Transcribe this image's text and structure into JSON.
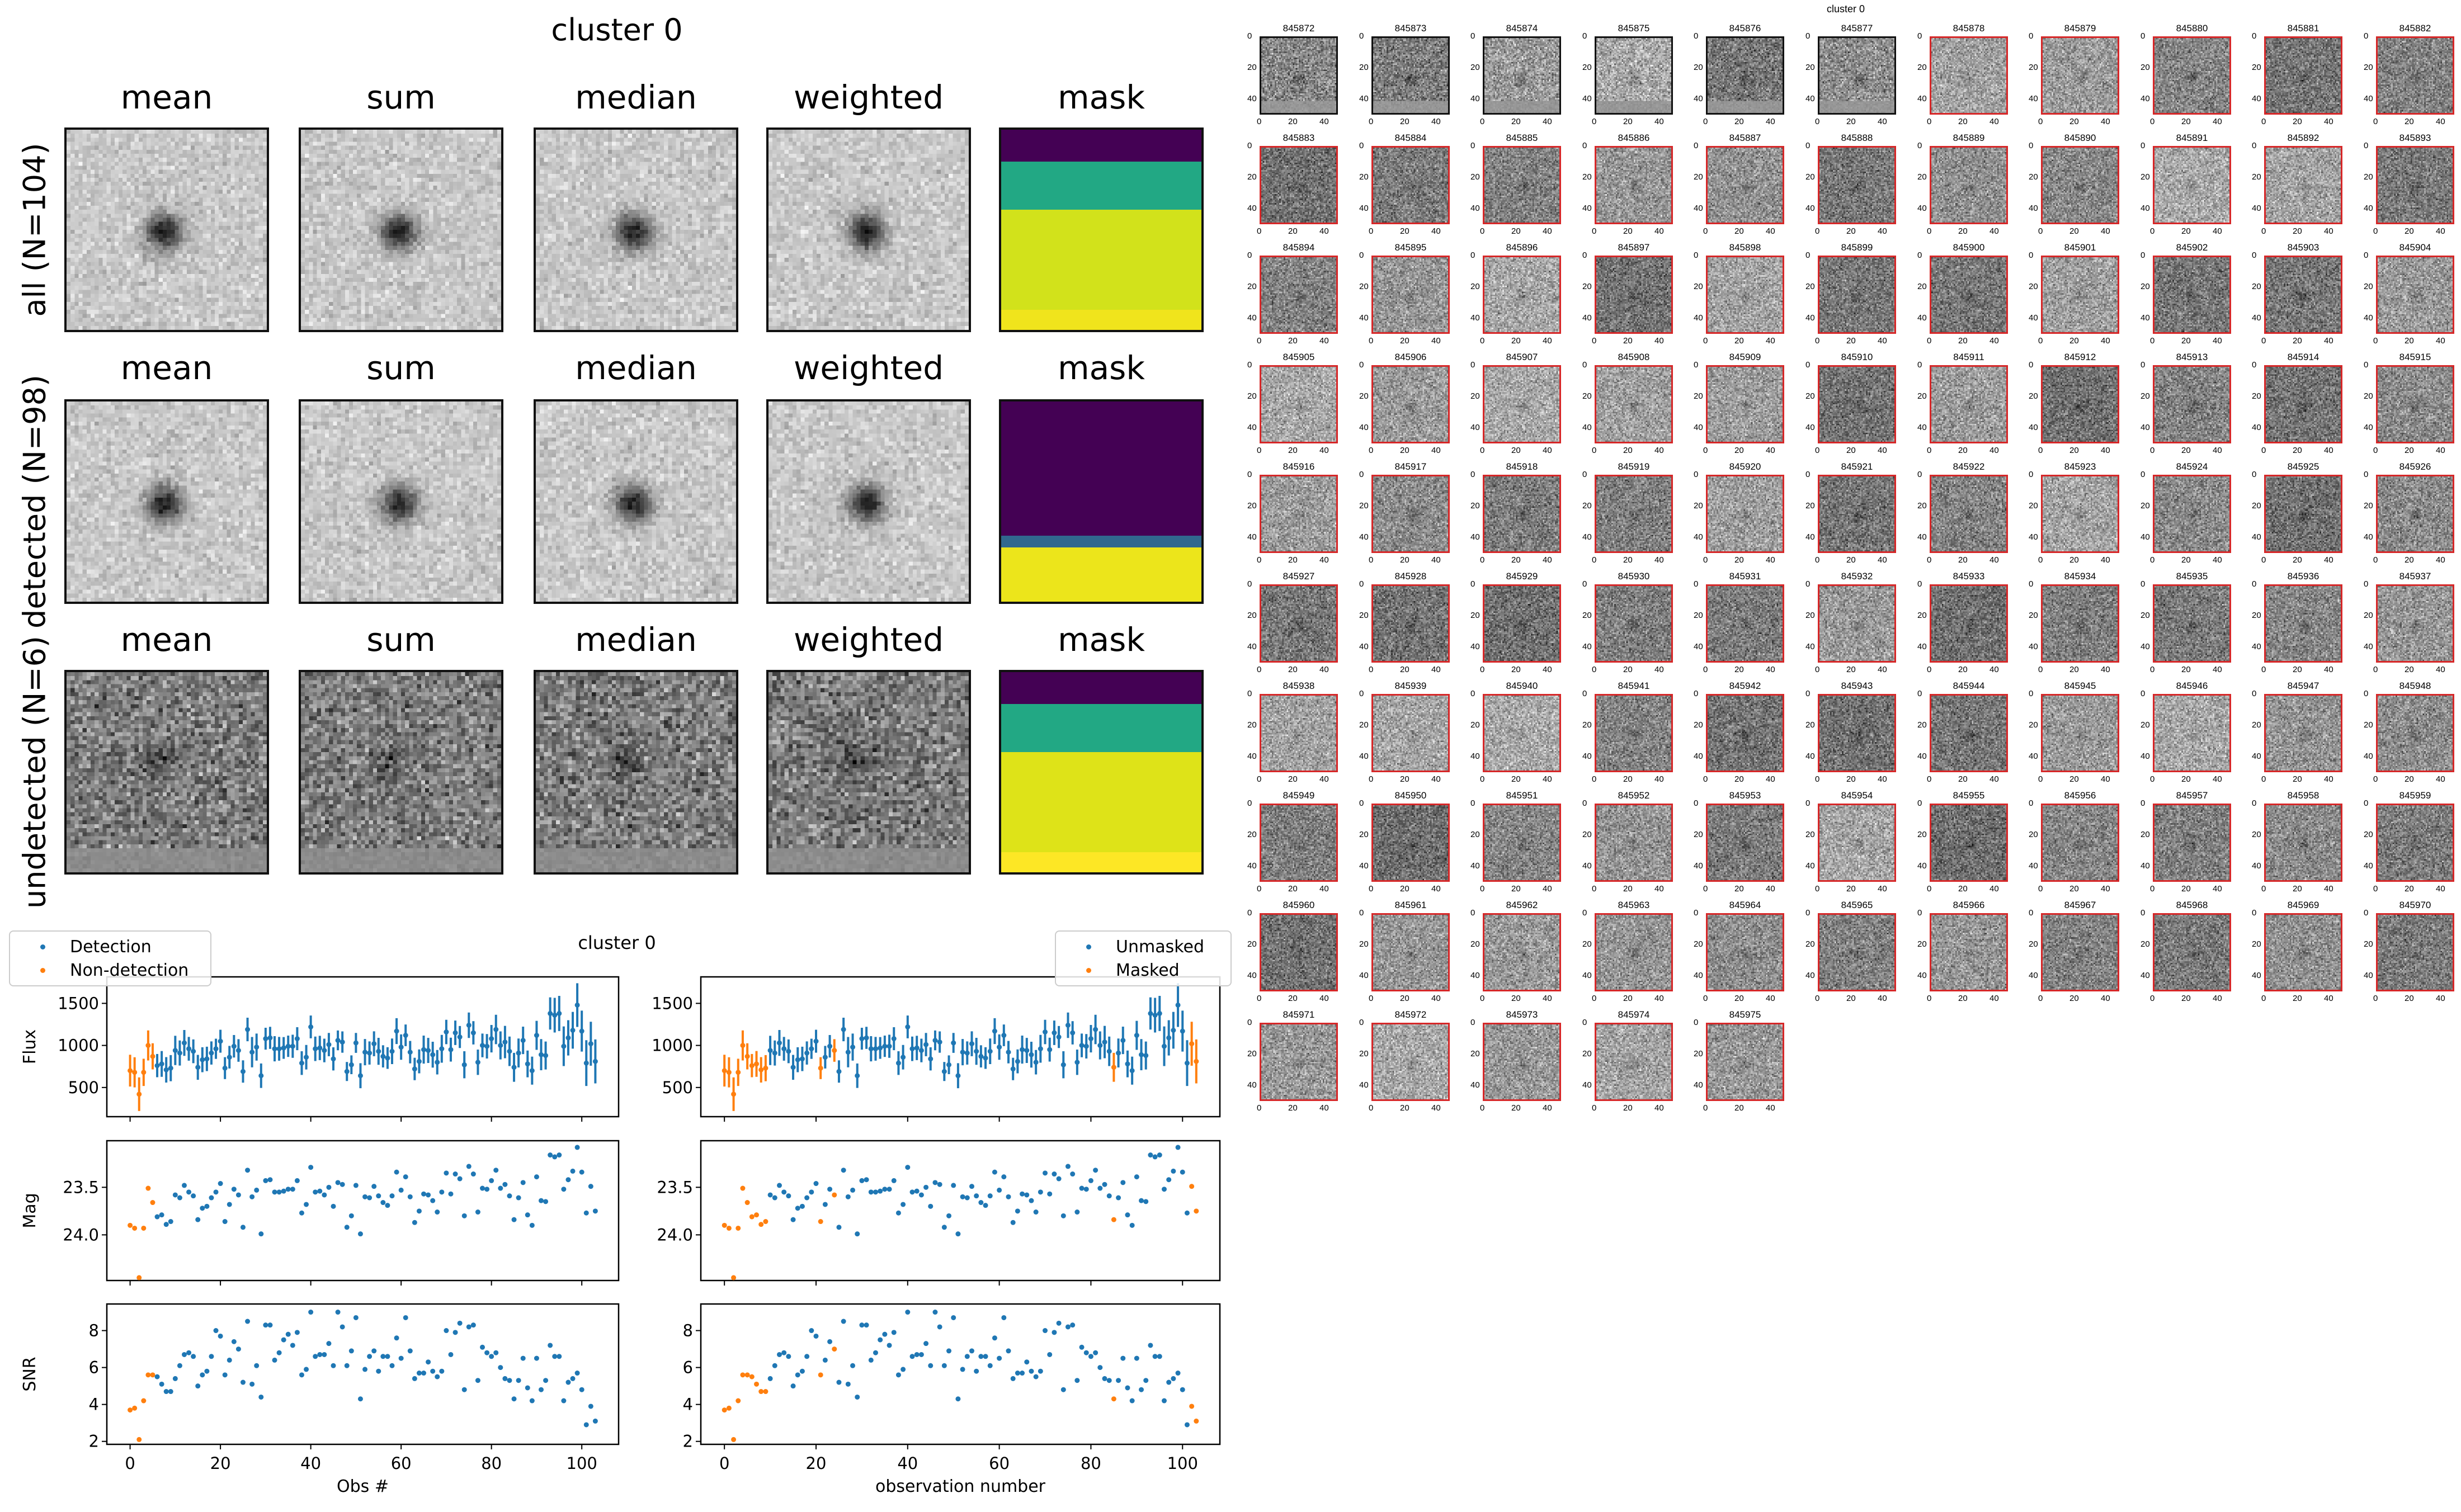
{
  "stack_figure": {
    "title": "cluster 0",
    "columns": [
      "mean",
      "sum",
      "median",
      "weighted",
      "mask"
    ],
    "rows": [
      {
        "label": "all (N=104)",
        "variant": "all"
      },
      {
        "label": "detected (N=98)",
        "variant": "detected"
      },
      {
        "label": "undetected (N=6)",
        "variant": "undetected"
      }
    ],
    "mask_bands": [
      [
        [
          "#440154",
          16
        ],
        [
          "#22a884",
          24
        ],
        [
          "#d2e21b",
          50
        ],
        [
          "#f0e41c",
          10
        ]
      ],
      [
        [
          "#440154",
          67
        ],
        [
          "#31688e",
          6
        ],
        [
          "#ece51b",
          27
        ]
      ],
      [
        [
          "#440154",
          16
        ],
        [
          "#22a884",
          24
        ],
        [
          "#dee318",
          50
        ],
        [
          "#fde725",
          10
        ]
      ]
    ]
  },
  "thumbnails": {
    "title": "cluster 0",
    "axis_ticks": [
      "0",
      "20",
      "40"
    ],
    "frame_colors": {
      "detected": "#d62728",
      "undetected": "#111111"
    },
    "undetected_count": 6,
    "ids": [
      "845872",
      "845873",
      "845874",
      "845875",
      "845876",
      "845877",
      "845878",
      "845879",
      "845880",
      "845881",
      "845882",
      "845883",
      "845884",
      "845885",
      "845886",
      "845887",
      "845888",
      "845889",
      "845890",
      "845891",
      "845892",
      "845893",
      "845894",
      "845895",
      "845896",
      "845897",
      "845898",
      "845899",
      "845900",
      "845901",
      "845902",
      "845903",
      "845904",
      "845905",
      "845906",
      "845907",
      "845908",
      "845909",
      "845910",
      "845911",
      "845912",
      "845913",
      "845914",
      "845915",
      "845916",
      "845917",
      "845918",
      "845919",
      "845920",
      "845921",
      "845922",
      "845923",
      "845924",
      "845925",
      "845926",
      "845927",
      "845928",
      "845929",
      "845930",
      "845931",
      "845932",
      "845933",
      "845934",
      "845935",
      "845936",
      "845937",
      "845938",
      "845939",
      "845940",
      "845941",
      "845942",
      "845943",
      "845944",
      "845945",
      "845946",
      "845947",
      "845948",
      "845949",
      "845950",
      "845951",
      "845952",
      "845953",
      "845954",
      "845955",
      "845956",
      "845957",
      "845958",
      "845959",
      "845960",
      "845961",
      "845962",
      "845963",
      "845964",
      "845965",
      "845966",
      "845967",
      "845968",
      "845969",
      "845970",
      "845971",
      "845972",
      "845973",
      "845974",
      "845975"
    ]
  },
  "chart_data": {
    "type": "scatter",
    "title": "cluster 0",
    "colors": {
      "blue": "#1f77b4",
      "orange": "#ff7f0e"
    },
    "x": [
      0,
      1,
      2,
      3,
      4,
      5,
      6,
      7,
      8,
      9,
      10,
      11,
      12,
      13,
      14,
      15,
      16,
      17,
      18,
      19,
      20,
      21,
      22,
      23,
      24,
      25,
      26,
      27,
      28,
      29,
      30,
      31,
      32,
      33,
      34,
      35,
      36,
      37,
      38,
      39,
      40,
      41,
      42,
      43,
      44,
      45,
      46,
      47,
      48,
      49,
      50,
      51,
      52,
      53,
      54,
      55,
      56,
      57,
      58,
      59,
      60,
      61,
      62,
      63,
      64,
      65,
      66,
      67,
      68,
      69,
      70,
      71,
      72,
      73,
      74,
      75,
      76,
      77,
      78,
      79,
      80,
      81,
      82,
      83,
      84,
      85,
      86,
      87,
      88,
      89,
      90,
      91,
      92,
      93,
      94,
      95,
      96,
      97,
      98,
      99,
      100,
      101,
      102,
      103
    ],
    "flux": [
      700,
      680,
      420,
      680,
      1000,
      870,
      760,
      780,
      710,
      730,
      940,
      910,
      1030,
      960,
      930,
      740,
      830,
      840,
      910,
      960,
      1050,
      730,
      860,
      990,
      940,
      690,
      1190,
      920,
      980,
      640,
      1080,
      1090,
      960,
      960,
      970,
      990,
      990,
      1080,
      790,
      860,
      1220,
      960,
      970,
      940,
      1010,
      840,
      1060,
      1040,
      690,
      770,
      1030,
      640,
      920,
      910,
      1020,
      930,
      870,
      850,
      930,
      1170,
      980,
      1120,
      920,
      720,
      810,
      950,
      940,
      890,
      800,
      960,
      1160,
      950,
      1150,
      1100,
      770,
      1240,
      1150,
      800,
      1000,
      990,
      1080,
      1190,
      1000,
      1040,
      930,
      740,
      910,
      1060,
      780,
      700,
      1120,
      890,
      880,
      1380,
      1360,
      1380,
      990,
      1090,
      1180,
      1480,
      1170,
      790,
      1020,
      810
    ],
    "mag": [
      23.9,
      23.93,
      24.45,
      23.93,
      23.51,
      23.66,
      23.81,
      23.79,
      23.89,
      23.86,
      23.58,
      23.61,
      23.48,
      23.55,
      23.59,
      23.84,
      23.72,
      23.7,
      23.61,
      23.55,
      23.46,
      23.86,
      23.68,
      23.52,
      23.58,
      23.92,
      23.32,
      23.6,
      23.53,
      23.99,
      23.43,
      23.42,
      23.55,
      23.55,
      23.54,
      23.52,
      23.52,
      23.43,
      23.77,
      23.68,
      23.29,
      23.55,
      23.54,
      23.58,
      23.5,
      23.7,
      23.45,
      23.47,
      23.92,
      23.8,
      23.48,
      23.99,
      23.6,
      23.61,
      23.49,
      23.59,
      23.66,
      23.69,
      23.59,
      23.34,
      23.53,
      23.39,
      23.6,
      23.87,
      23.75,
      23.57,
      23.58,
      23.64,
      23.76,
      23.55,
      23.35,
      23.57,
      23.36,
      23.41,
      23.8,
      23.28,
      23.36,
      23.76,
      23.51,
      23.52,
      23.43,
      23.32,
      23.51,
      23.47,
      23.59,
      23.84,
      23.61,
      23.45,
      23.79,
      23.9,
      23.39,
      23.64,
      23.65,
      23.16,
      23.18,
      23.16,
      23.52,
      23.42,
      23.33,
      23.08,
      23.34,
      23.77,
      23.49,
      23.75
    ],
    "snr": [
      3.7,
      3.8,
      2.1,
      4.2,
      5.6,
      5.6,
      5.5,
      5.1,
      4.7,
      4.7,
      5.4,
      6.1,
      6.7,
      6.8,
      6.6,
      5.0,
      5.6,
      5.8,
      6.6,
      8.0,
      7.7,
      5.6,
      6.4,
      7.4,
      7.0,
      5.2,
      8.5,
      5.1,
      6.1,
      4.4,
      8.3,
      8.3,
      6.4,
      6.8,
      7.5,
      7.8,
      7.2,
      7.9,
      5.6,
      5.9,
      9.0,
      6.6,
      6.7,
      6.7,
      7.3,
      6.1,
      9.0,
      8.2,
      6.1,
      6.9,
      8.7,
      4.3,
      5.9,
      6.6,
      6.9,
      5.8,
      6.6,
      6.6,
      6.1,
      7.6,
      6.5,
      8.7,
      6.9,
      5.4,
      5.7,
      5.7,
      6.3,
      5.8,
      5.5,
      5.8,
      8.0,
      6.7,
      7.9,
      8.4,
      4.8,
      8.2,
      8.3,
      5.3,
      7.1,
      6.8,
      6.6,
      6.8,
      6.0,
      5.4,
      5.3,
      4.3,
      5.3,
      6.5,
      4.9,
      4.2,
      6.5,
      4.8,
      5.3,
      7.2,
      6.6,
      6.6,
      4.2,
      5.2,
      5.4,
      5.7,
      4.8,
      2.9,
      3.9,
      3.1
    ],
    "panels": [
      {
        "ylabel": "Flux",
        "ylim": [
          153,
          1815
        ],
        "yticks": [
          500,
          1000,
          1500
        ],
        "ytick_labels": [
          "500",
          "1000",
          "1500"
        ],
        "inverted": false,
        "errorbars": true
      },
      {
        "ylabel": "Mag",
        "ylim": [
          24.48,
          23.01
        ],
        "yticks": [
          23.5,
          24.0
        ],
        "ytick_labels": [
          "23.5",
          "24.0"
        ],
        "inverted": true,
        "errorbars": false
      },
      {
        "ylabel": "SNR",
        "ylim": [
          1.84,
          9.44
        ],
        "yticks": [
          2,
          4,
          6,
          8
        ],
        "ytick_labels": [
          "2",
          "4",
          "6",
          "8"
        ],
        "inverted": false,
        "errorbars": false
      }
    ],
    "xlim": [
      -5.15,
      108.15
    ],
    "xticks": [
      0,
      20,
      40,
      60,
      80,
      100
    ],
    "xtick_labels": [
      "0",
      "20",
      "40",
      "60",
      "80",
      "100"
    ],
    "left": {
      "xlabel": "Obs #",
      "legend": {
        "position": "upper-left",
        "entries": [
          "Detection",
          "Non-detection"
        ]
      },
      "orange_indices": [
        0,
        1,
        2,
        3,
        4,
        5
      ]
    },
    "right": {
      "xlabel": "observation number",
      "legend": {
        "position": "upper-right",
        "entries": [
          "Unmasked",
          "Masked"
        ]
      },
      "orange_indices": [
        0,
        1,
        2,
        3,
        4,
        5,
        6,
        7,
        8,
        9,
        21,
        24,
        85,
        102,
        103
      ]
    }
  }
}
